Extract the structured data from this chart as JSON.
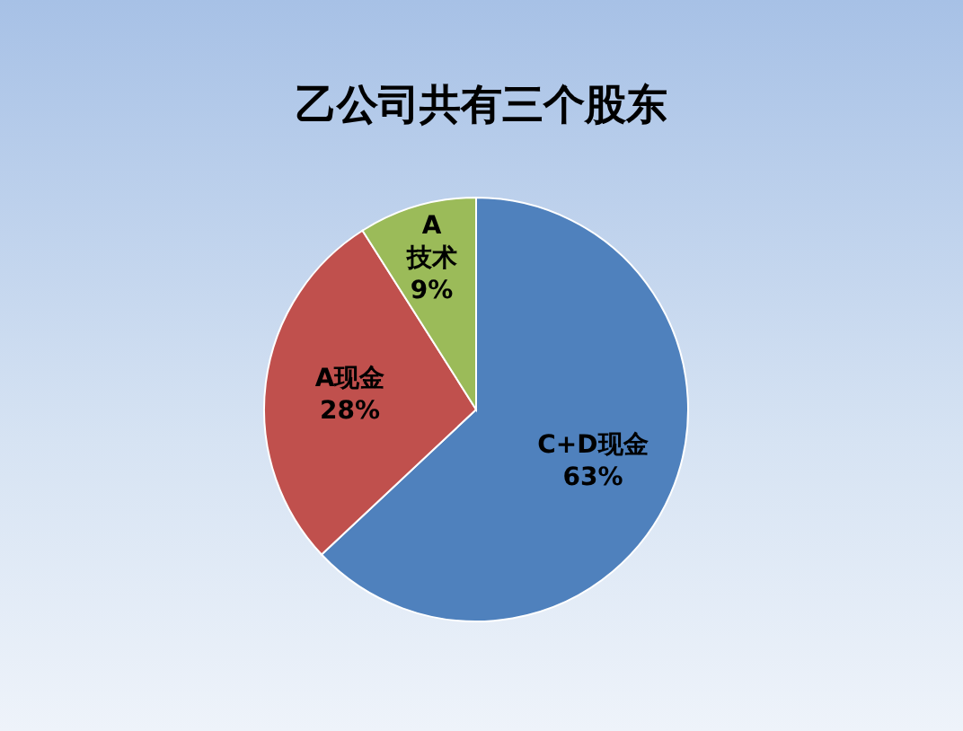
{
  "chart_data": {
    "type": "pie",
    "title": "乙公司共有三个股东",
    "categories": [
      "C+D现金",
      "A现金",
      "A\n技术"
    ],
    "values": [
      63,
      28,
      9
    ],
    "colors": [
      "#4f81bd",
      "#c0504d",
      "#9bbb59"
    ],
    "value_labels": [
      "63%",
      "28%",
      "9%"
    ]
  }
}
